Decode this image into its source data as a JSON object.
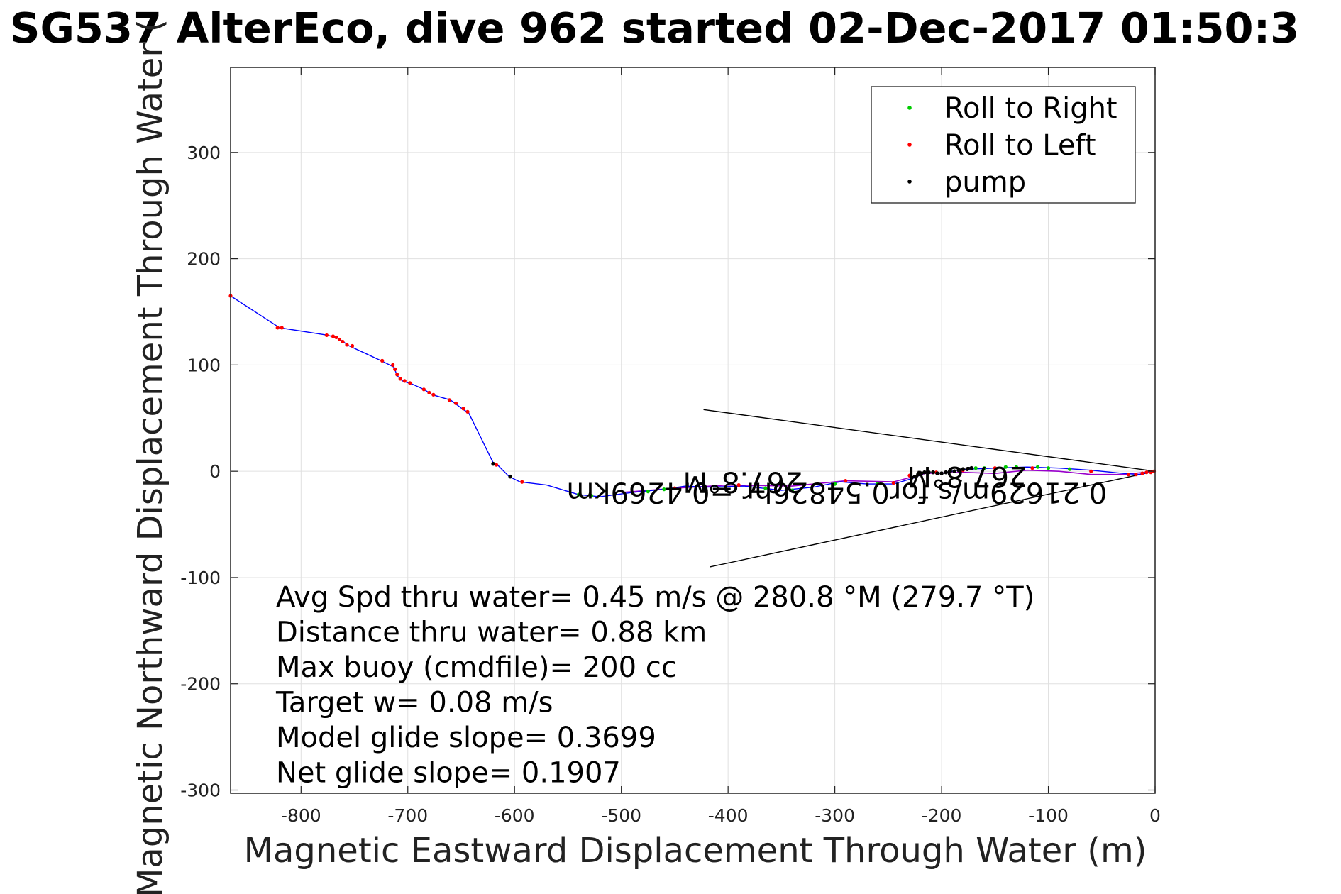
{
  "chart_data": {
    "type": "line",
    "title": "SG537 AlterEco, dive 962 started 02-Dec-2017 01:50:3",
    "xlabel": "Magnetic Eastward Displacement Through Water (m)",
    "ylabel": "Magnetic Northward Displacement Through Water (",
    "xlim": [
      -866,
      0
    ],
    "ylim": [
      -303,
      380
    ],
    "x_ticks": [
      -800,
      -700,
      -600,
      -500,
      -400,
      -300,
      -200,
      -100,
      0
    ],
    "y_ticks": [
      -300,
      -200,
      -100,
      0,
      100,
      200,
      300
    ],
    "grid": true,
    "legend_position": "top-right",
    "legend": [
      {
        "label": "Roll to Right",
        "color": "#00cc00"
      },
      {
        "label": "Roll to Left",
        "color": "#ff0000"
      },
      {
        "label": "pump",
        "color": "#000000"
      }
    ],
    "colors": {
      "track": "#0000ff",
      "purple": "#9900cc",
      "green": "#00cc00",
      "red": "#ff0000",
      "pump": "#000000",
      "grid": "#e0e0e0"
    },
    "track": [
      [
        -866,
        165
      ],
      [
        -820,
        135
      ],
      [
        -775,
        128
      ],
      [
        -765,
        125
      ],
      [
        -755,
        118
      ],
      [
        -725,
        104
      ],
      [
        -713,
        98
      ],
      [
        -710,
        90
      ],
      [
        -705,
        85
      ],
      [
        -696,
        82
      ],
      [
        -685,
        77
      ],
      [
        -677,
        72
      ],
      [
        -660,
        67
      ],
      [
        -648,
        58
      ],
      [
        -643,
        55
      ],
      [
        -620,
        8
      ],
      [
        -615,
        5
      ],
      [
        -605,
        -5
      ],
      [
        -595,
        -10
      ],
      [
        -570,
        -13
      ],
      [
        -540,
        -22
      ],
      [
        -520,
        -24
      ],
      [
        -490,
        -20
      ],
      [
        -460,
        -17
      ],
      [
        -440,
        -14
      ],
      [
        -420,
        -15
      ],
      [
        -385,
        -14
      ],
      [
        -350,
        -18
      ],
      [
        -320,
        -15
      ],
      [
        -295,
        -10
      ],
      [
        -270,
        -12
      ],
      [
        -245,
        -12
      ],
      [
        -225,
        -6
      ],
      [
        -215,
        -1
      ],
      [
        -200,
        -2
      ],
      [
        -185,
        1
      ],
      [
        -175,
        2
      ],
      [
        -150,
        3
      ],
      [
        -120,
        4
      ],
      [
        -90,
        3
      ],
      [
        -60,
        1
      ],
      [
        -30,
        -2
      ],
      [
        -15,
        -3
      ],
      [
        -5,
        -1
      ],
      [
        0,
        0
      ]
    ],
    "purple_track": [
      [
        -500,
        -20
      ],
      [
        -450,
        -16
      ],
      [
        -400,
        -13
      ],
      [
        -340,
        -14
      ],
      [
        -290,
        -9
      ],
      [
        -245,
        -10
      ],
      [
        -215,
        -2
      ],
      [
        -180,
        -1
      ],
      [
        -150,
        -2
      ],
      [
        -120,
        1
      ],
      [
        -90,
        0
      ],
      [
        -60,
        -3
      ],
      [
        -30,
        -3
      ],
      [
        0,
        0
      ]
    ],
    "roll_left_points": [
      [
        -866,
        165
      ],
      [
        -822,
        135
      ],
      [
        -818,
        135
      ],
      [
        -776,
        128
      ],
      [
        -770,
        127
      ],
      [
        -767,
        126
      ],
      [
        -764,
        124
      ],
      [
        -761,
        122
      ],
      [
        -757,
        119
      ],
      [
        -752,
        118
      ],
      [
        -724,
        104
      ],
      [
        -714,
        100
      ],
      [
        -712,
        96
      ],
      [
        -710,
        91
      ],
      [
        -707,
        87
      ],
      [
        -703,
        85
      ],
      [
        -698,
        83
      ],
      [
        -685,
        77
      ],
      [
        -680,
        74
      ],
      [
        -676,
        72
      ],
      [
        -661,
        67
      ],
      [
        -655,
        64
      ],
      [
        -648,
        59
      ],
      [
        -644,
        56
      ],
      [
        -617,
        6
      ],
      [
        -593,
        -10
      ],
      [
        -450,
        -16
      ],
      [
        -390,
        -13
      ],
      [
        -290,
        -9
      ],
      [
        -245,
        -11
      ],
      [
        -230,
        -4
      ],
      [
        -205,
        -1
      ],
      [
        -180,
        1
      ],
      [
        -150,
        3
      ],
      [
        -115,
        3
      ],
      [
        -60,
        0
      ],
      [
        -25,
        -3
      ],
      [
        -18,
        -3
      ],
      [
        -12,
        -2
      ],
      [
        -8,
        -1
      ],
      [
        -4,
        -1
      ],
      [
        -1,
        0
      ]
    ],
    "roll_right_points": [
      [
        -540,
        -22
      ],
      [
        -528,
        -23
      ],
      [
        -475,
        -19
      ],
      [
        -460,
        -17
      ],
      [
        -365,
        -16
      ],
      [
        -340,
        -18
      ],
      [
        -300,
        -12
      ],
      [
        -260,
        -12
      ],
      [
        -168,
        3
      ],
      [
        -160,
        3
      ],
      [
        -140,
        4
      ],
      [
        -130,
        4
      ],
      [
        -110,
        4
      ],
      [
        -100,
        3
      ],
      [
        -80,
        2
      ]
    ],
    "pump_points": [
      [
        -620,
        7
      ],
      [
        -604,
        -5
      ],
      [
        -228,
        -6
      ],
      [
        -225,
        -5
      ],
      [
        -222,
        -3
      ],
      [
        -219,
        -2
      ],
      [
        -216,
        -1
      ],
      [
        -212,
        -1
      ],
      [
        -208,
        -1
      ],
      [
        -204,
        -2
      ],
      [
        -200,
        -2
      ],
      [
        -196,
        -1
      ],
      [
        -192,
        0
      ],
      [
        -188,
        0
      ],
      [
        -184,
        1
      ],
      [
        -180,
        2
      ],
      [
        -176,
        2
      ],
      [
        -172,
        3
      ]
    ],
    "wedge_lines": [
      {
        "from": [
          -423,
          58
        ],
        "to": [
          0,
          0
        ]
      },
      {
        "from": [
          -417,
          -90
        ],
        "to": [
          0,
          0
        ]
      }
    ],
    "annotations": [
      {
        "text": "267.8°M",
        "x": -120,
        "y": 4
      },
      {
        "text": "0.21629m/s for0.54826hr =0.4269km",
        "x": -45,
        "y": -11
      },
      {
        "text": "267.8°M",
        "x": -330,
        "y": -1
      }
    ],
    "stats": [
      "Avg Spd thru water=  0.45 m/s @ 280.8 °M (279.7 °T)",
      "Distance thru water=  0.88 km",
      "Max buoy (cmdfile)= 200 cc",
      "Target w= 0.08 m/s",
      "Model glide slope= 0.3699",
      "Net glide slope= 0.1907"
    ]
  }
}
